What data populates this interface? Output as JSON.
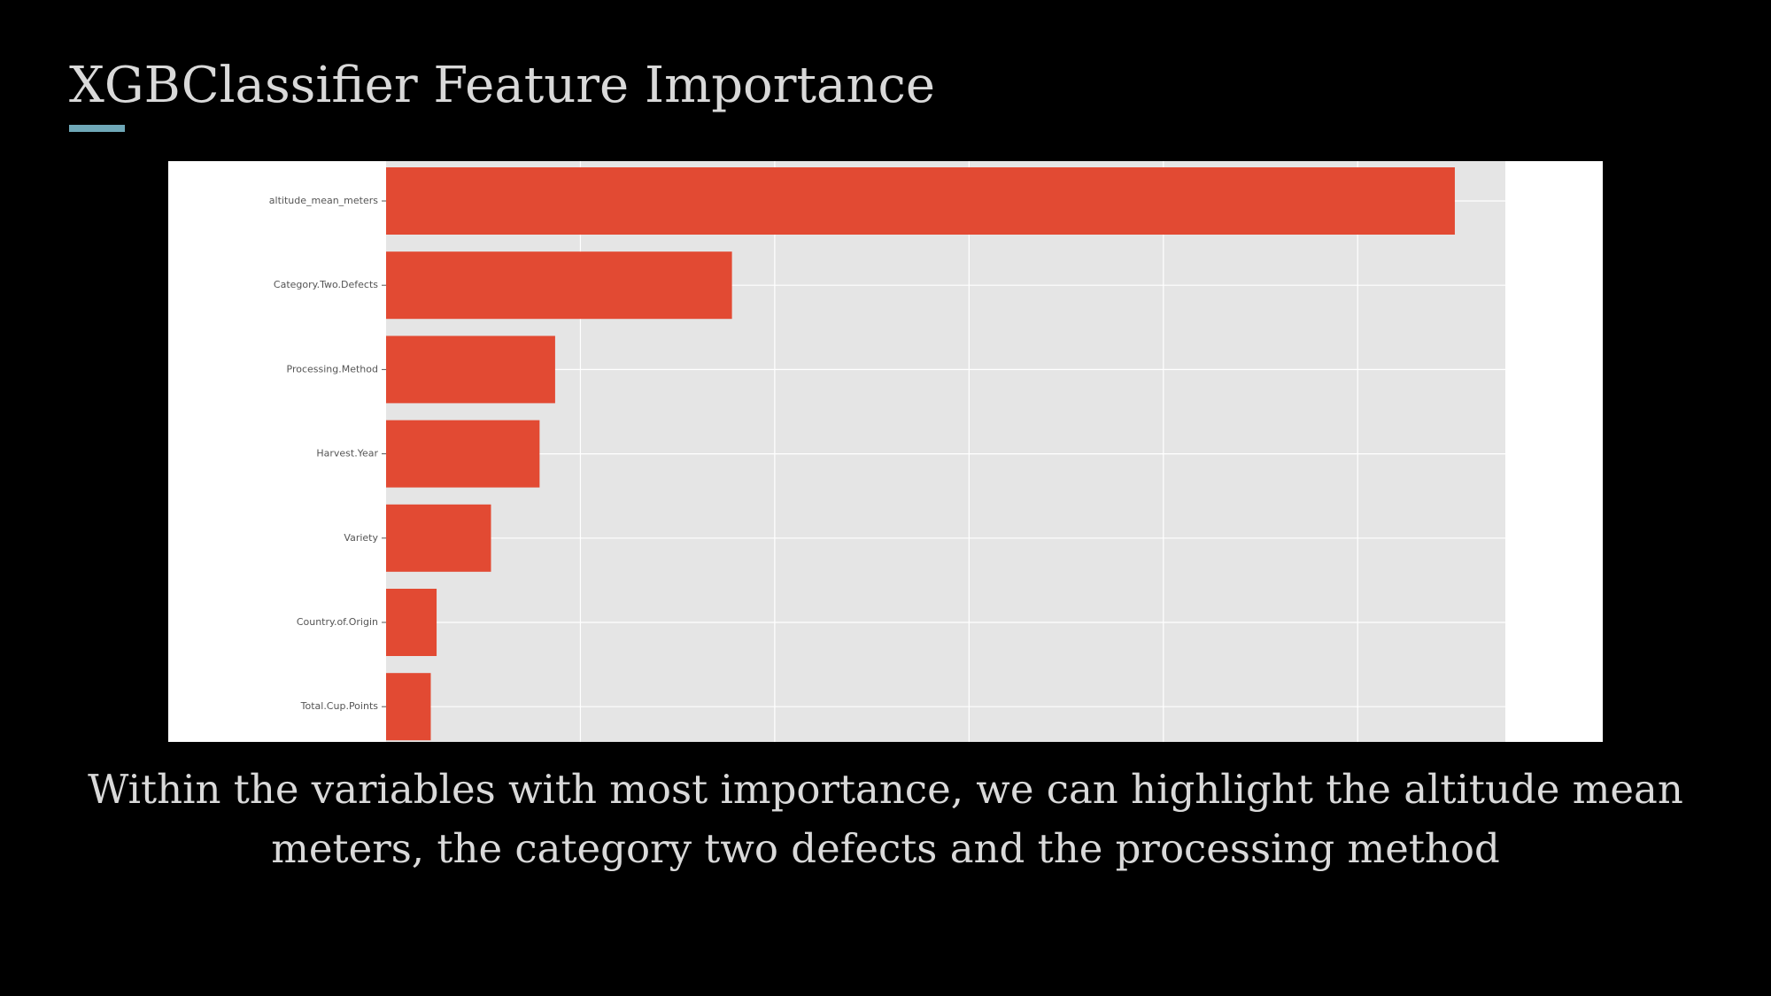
{
  "slide": {
    "title": "XGBClassifier Feature Importance",
    "caption": "Within the variables with most importance, we can highlight the altitude mean meters, the category two defects and the processing method",
    "accent_color": "#6fa8b8",
    "background_color": "#000000",
    "text_color": "#d9d9d9"
  },
  "chart_data": {
    "type": "bar",
    "orientation": "horizontal",
    "style": "ggplot",
    "categories": [
      "altitude_mean_meters",
      "Category.Two.Defects",
      "Processing.Method",
      "Harvest.Year",
      "Variety",
      "Country.of.Origin",
      "Total.Cup.Points"
    ],
    "values": [
      0.275,
      0.089,
      0.0435,
      0.0395,
      0.027,
      0.013,
      0.0115
    ],
    "xlim": [
      0,
      0.288
    ],
    "xticks": [
      0.05,
      0.1,
      0.15,
      0.2,
      0.25
    ],
    "grid": true,
    "bar_color": "#e24a33",
    "plot_background": "#e5e5e5",
    "title": "",
    "xlabel": "",
    "ylabel": ""
  }
}
